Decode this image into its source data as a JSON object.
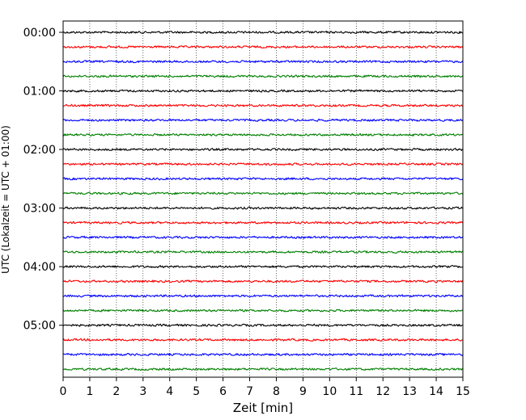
{
  "chart_data": {
    "type": "line",
    "title": "",
    "xlabel": "Zeit  [min]",
    "ylabel": "UTC (Lokalzeit = UTC + 01:00)",
    "xlim": [
      0,
      15
    ],
    "xticks": [
      "0",
      "1",
      "2",
      "3",
      "4",
      "5",
      "6",
      "7",
      "8",
      "9",
      "10",
      "11",
      "12",
      "13",
      "14",
      "15"
    ],
    "ylim_hours": [
      6.08,
      0.0
    ],
    "yticks": [
      {
        "label": "00:00",
        "hour": 0
      },
      {
        "label": "01:00",
        "hour": 1
      },
      {
        "label": "02:00",
        "hour": 2
      },
      {
        "label": "03:00",
        "hour": 3
      },
      {
        "label": "04:00",
        "hour": 4
      },
      {
        "label": "05:00",
        "hour": 5
      }
    ],
    "vertical_grid": "dotted",
    "trace_interval_minutes": 15,
    "trace_count": 24,
    "color_cycle": [
      "#000000",
      "#ff0000",
      "#0000ff",
      "#008000"
    ],
    "series": [
      {
        "start": "00:00",
        "color": "#000000"
      },
      {
        "start": "00:15",
        "color": "#ff0000"
      },
      {
        "start": "00:30",
        "color": "#0000ff"
      },
      {
        "start": "00:45",
        "color": "#008000"
      },
      {
        "start": "01:00",
        "color": "#000000"
      },
      {
        "start": "01:15",
        "color": "#ff0000"
      },
      {
        "start": "01:30",
        "color": "#0000ff"
      },
      {
        "start": "01:45",
        "color": "#008000"
      },
      {
        "start": "02:00",
        "color": "#000000"
      },
      {
        "start": "02:15",
        "color": "#ff0000"
      },
      {
        "start": "02:30",
        "color": "#0000ff"
      },
      {
        "start": "02:45",
        "color": "#008000"
      },
      {
        "start": "03:00",
        "color": "#000000"
      },
      {
        "start": "03:15",
        "color": "#ff0000"
      },
      {
        "start": "03:30",
        "color": "#0000ff"
      },
      {
        "start": "03:45",
        "color": "#008000"
      },
      {
        "start": "04:00",
        "color": "#000000"
      },
      {
        "start": "04:15",
        "color": "#ff0000"
      },
      {
        "start": "04:30",
        "color": "#0000ff"
      },
      {
        "start": "04:45",
        "color": "#008000"
      },
      {
        "start": "05:00",
        "color": "#000000"
      },
      {
        "start": "05:15",
        "color": "#ff0000"
      },
      {
        "start": "05:30",
        "color": "#0000ff"
      },
      {
        "start": "05:45",
        "color": "#008000"
      }
    ]
  }
}
